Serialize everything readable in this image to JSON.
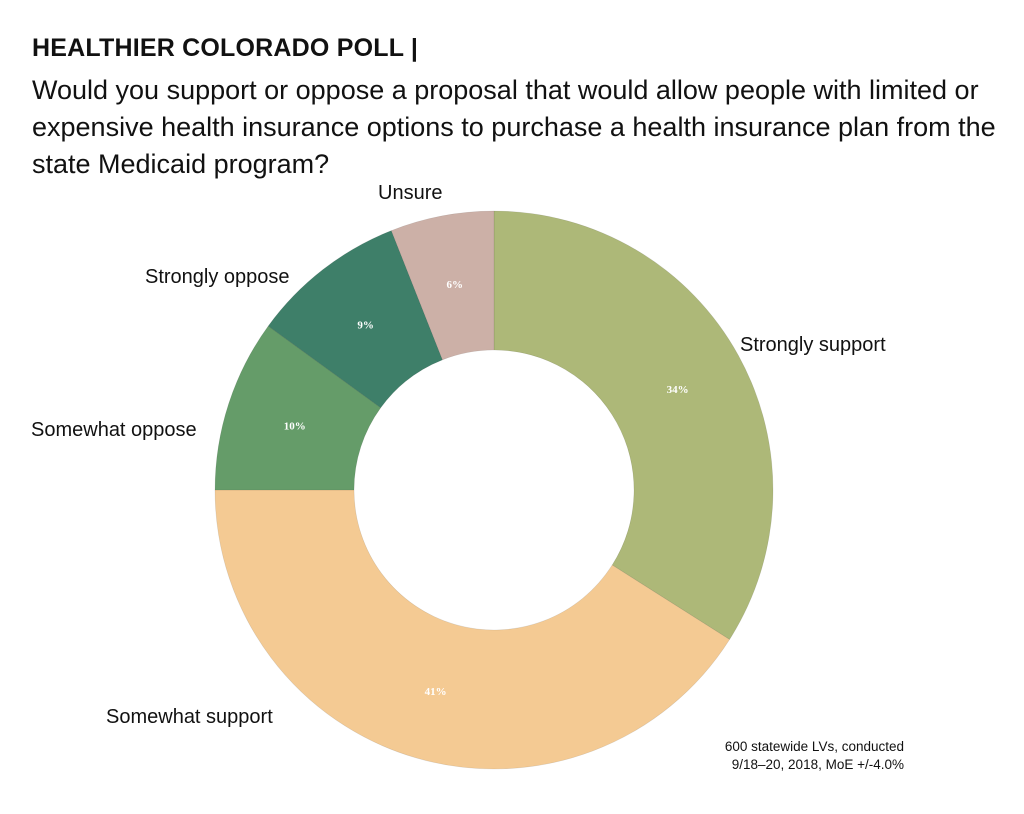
{
  "header": {
    "kicker": "HEALTHIER COLORADO POLL |",
    "question": "Would you support or oppose a proposal that would allow people with limited or expensive health insurance options to purchase a health insurance plan from the state Medicaid program?"
  },
  "chart_data": {
    "type": "pie",
    "donut": true,
    "start": "12 o'clock",
    "direction": "clockwise",
    "slices": [
      {
        "label": "Strongly support",
        "value": 34,
        "display": "34%",
        "color": "#adb878"
      },
      {
        "label": "Somewhat support",
        "value": 41,
        "display": "41%",
        "color": "#f4ca93"
      },
      {
        "label": "Somewhat oppose",
        "value": 10,
        "display": "10%",
        "color": "#659c69"
      },
      {
        "label": "Strongly oppose",
        "value": 9,
        "display": "9%",
        "color": "#3e7f69"
      },
      {
        "label": "Unsure",
        "value": 6,
        "display": "6%",
        "color": "#ccb0a7"
      }
    ]
  },
  "source_note": "600 statewide LVs, conducted\n9/18–20, 2018, MoE +/-4.0%"
}
